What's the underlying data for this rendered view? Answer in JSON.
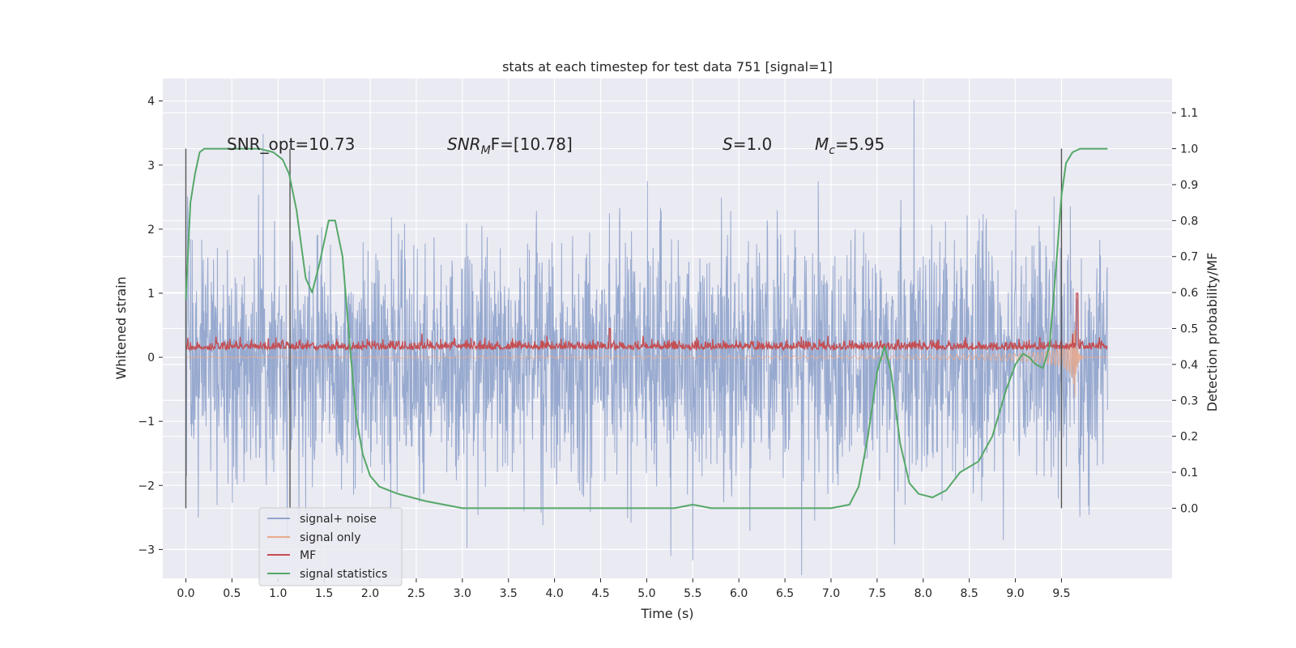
{
  "chart_data": {
    "type": "line",
    "title": "stats at each timestep for test data 751 [signal=1]",
    "xlabel": "Time (s)",
    "ylabel": "Whitened strain",
    "y2label": "Detection probability/MF",
    "xlim": [
      -0.25,
      10.7
    ],
    "ylim": [
      -3.45,
      4.35
    ],
    "y2lim": [
      -0.195,
      1.195
    ],
    "x_ticks": [
      "0.0",
      "0.5",
      "1.0",
      "1.5",
      "2.0",
      "2.5",
      "3.0",
      "3.5",
      "4.0",
      "4.5",
      "5.0",
      "5.5",
      "6.0",
      "6.5",
      "7.0",
      "7.5",
      "8.0",
      "8.5",
      "9.0",
      "9.5"
    ],
    "y_ticks": [
      "4",
      "3",
      "2",
      "1",
      "0",
      "−1",
      "−2",
      "−3"
    ],
    "y2_ticks": [
      "1.1",
      "1.0",
      "0.9",
      "0.8",
      "0.7",
      "0.6",
      "0.5",
      "0.4",
      "0.3",
      "0.2",
      "0.1",
      "0.0"
    ],
    "grid": true,
    "legend_position": "lower-left",
    "annotations": {
      "snr_opt": "SNR_opt=10.73",
      "snr_mf_prefix": "SNR",
      "snr_mf_sub": "M",
      "snr_mf_suffix": "F=[10.78]",
      "s_label": "S",
      "s_value": "=1.0",
      "mc_label": "M",
      "mc_sub": "c",
      "mc_value": "=5.95"
    },
    "segment_boundaries": [
      0.0,
      1.13,
      9.5
    ],
    "series": [
      {
        "name": "signal+ noise",
        "color": "#92a5cc",
        "axis": "left",
        "description_values": {
          "x_range": [
            0.0,
            10.0
          ],
          "typical_abs": 1.0,
          "max": 4.02,
          "min": -3.1
        }
      },
      {
        "name": "signal only",
        "color": "#e8a98c",
        "axis": "left",
        "description_values": {
          "x_range": [
            0.0,
            10.0
          ],
          "chirp_peak_time": 9.65,
          "peak_amplitude": 1.2
        }
      },
      {
        "name": "MF",
        "color": "#c44e52",
        "axis": "left",
        "description_values": {
          "x_range": [
            0.0,
            10.0
          ],
          "baseline": 0.1,
          "peak_time": 9.67,
          "peak_value": 1.0
        }
      },
      {
        "name": "signal statistics",
        "color": "#55a868",
        "axis": "right",
        "x": [
          0.0,
          0.05,
          0.1,
          0.15,
          0.2,
          0.3,
          0.5,
          0.8,
          0.95,
          1.05,
          1.12,
          1.2,
          1.3,
          1.37,
          1.45,
          1.55,
          1.62,
          1.7,
          1.78,
          1.85,
          1.92,
          2.0,
          2.1,
          2.3,
          2.6,
          3.0,
          3.5,
          4.0,
          4.5,
          5.0,
          5.3,
          5.5,
          5.7,
          6.0,
          6.5,
          7.0,
          7.2,
          7.3,
          7.4,
          7.5,
          7.58,
          7.65,
          7.75,
          7.85,
          7.95,
          8.1,
          8.25,
          8.4,
          8.6,
          8.75,
          8.9,
          9.0,
          9.08,
          9.15,
          9.22,
          9.3,
          9.37,
          9.45,
          9.5,
          9.55,
          9.62,
          9.7,
          9.8,
          9.9,
          10.0
        ],
        "values": [
          0.58,
          0.85,
          0.93,
          0.99,
          1.0,
          1.0,
          1.0,
          1.0,
          0.99,
          0.97,
          0.93,
          0.83,
          0.64,
          0.6,
          0.68,
          0.8,
          0.8,
          0.7,
          0.45,
          0.25,
          0.15,
          0.09,
          0.06,
          0.04,
          0.02,
          0.0,
          0.0,
          0.0,
          0.0,
          0.0,
          0.0,
          0.01,
          0.0,
          0.0,
          0.0,
          0.0,
          0.01,
          0.06,
          0.2,
          0.38,
          0.45,
          0.38,
          0.18,
          0.07,
          0.04,
          0.03,
          0.05,
          0.1,
          0.13,
          0.2,
          0.33,
          0.4,
          0.43,
          0.42,
          0.4,
          0.39,
          0.45,
          0.7,
          0.87,
          0.96,
          0.99,
          1.0,
          1.0,
          1.0,
          1.0
        ]
      }
    ]
  }
}
